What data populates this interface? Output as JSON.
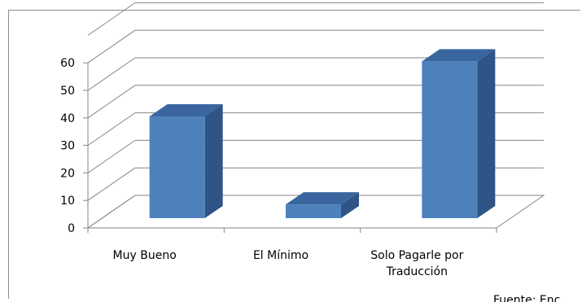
{
  "chart_data": {
    "type": "bar",
    "categories": [
      "Muy Bueno",
      "El Mínimo",
      "Solo Pagarle por Traducción"
    ],
    "category_lines": [
      [
        "Muy Bueno"
      ],
      [
        "El Mínimo"
      ],
      [
        "Solo Pagarle por",
        "Traducción"
      ]
    ],
    "values": [
      37,
      5,
      57
    ],
    "ylim": [
      0,
      60
    ],
    "yticks": [
      0,
      10,
      20,
      30,
      40,
      50,
      60
    ],
    "title": "",
    "xlabel": "",
    "ylabel": "",
    "grid": true,
    "style": "3d-column",
    "colors": {
      "front": "#4f81bd",
      "side": "#2f5486",
      "top": "#3a669f",
      "grid": "#868686"
    }
  },
  "source_note": "Fuente: Enc"
}
